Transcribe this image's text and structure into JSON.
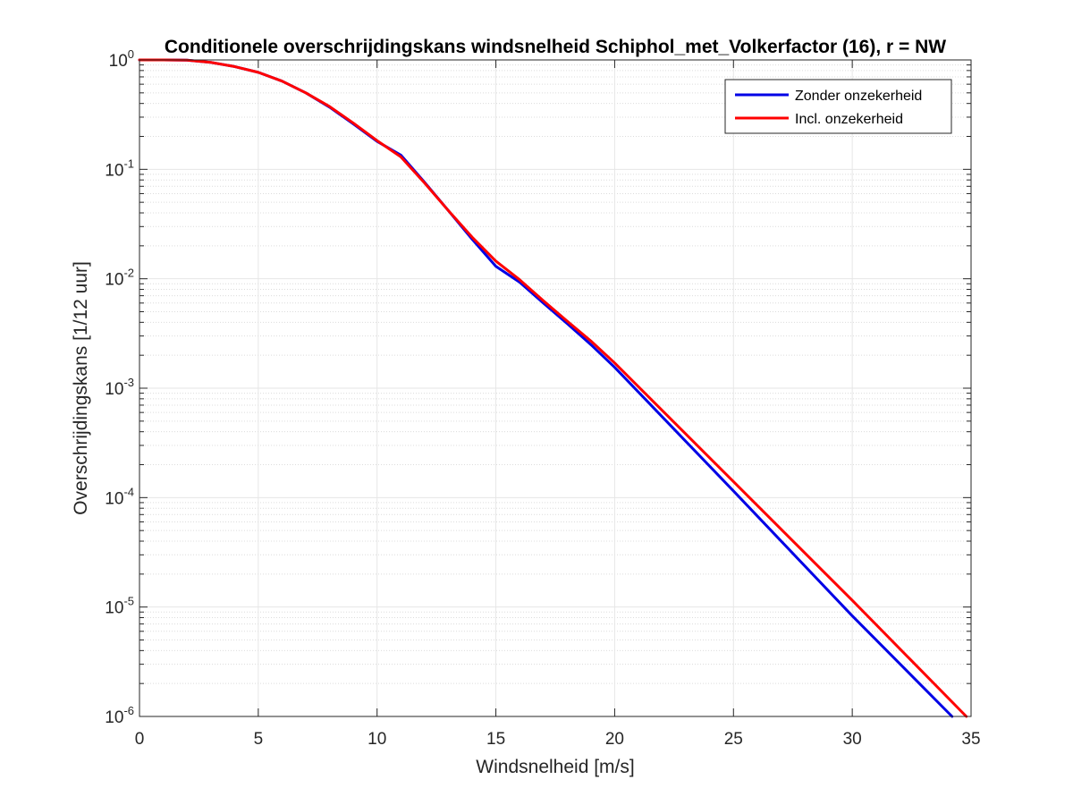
{
  "chart_data": {
    "type": "line",
    "title": "Conditionele overschrijdingskans windsnelheid Schiphol_met_Volkerfactor (16), r = NW",
    "xlabel": "Windsnelheid [m/s]",
    "ylabel": "Overschrijdingskans [1/12 uur]",
    "xlim": [
      0,
      35
    ],
    "ylim": [
      1e-06,
      1
    ],
    "yscale": "log",
    "grid": true,
    "minor_grid": true,
    "legend_position": "top-right",
    "xticks": [
      0,
      5,
      10,
      15,
      20,
      25,
      30,
      35
    ],
    "xtick_labels": [
      "0",
      "5",
      "10",
      "15",
      "20",
      "25",
      "30",
      "35"
    ],
    "yticks": [
      {
        "value": 1.0,
        "base": "10",
        "exp": "0"
      },
      {
        "value": 0.1,
        "base": "10",
        "exp": "-1"
      },
      {
        "value": 0.01,
        "base": "10",
        "exp": "-2"
      },
      {
        "value": 0.001,
        "base": "10",
        "exp": "-3"
      },
      {
        "value": 0.0001,
        "base": "10",
        "exp": "-4"
      },
      {
        "value": 1e-05,
        "base": "10",
        "exp": "-5"
      },
      {
        "value": 1e-06,
        "base": "10",
        "exp": "-6"
      }
    ],
    "series": [
      {
        "name": "Zonder onzekerheid",
        "color": "#0000e6",
        "x": [
          0,
          1,
          2,
          3,
          4,
          5,
          6,
          7,
          8,
          9,
          10,
          11,
          12,
          13,
          14,
          15,
          16,
          17,
          18,
          19,
          20,
          25,
          30,
          34.2
        ],
        "y": [
          1.0,
          1.0,
          0.995,
          0.95,
          0.87,
          0.77,
          0.64,
          0.5,
          0.37,
          0.26,
          0.18,
          0.135,
          0.076,
          0.042,
          0.023,
          0.013,
          0.0093,
          0.006,
          0.0039,
          0.0025,
          0.00155,
          0.000115,
          8.3e-06,
          1e-06
        ]
      },
      {
        "name": "Incl. onzekerheid",
        "color": "#ff0000",
        "x": [
          0,
          1,
          2,
          3,
          4,
          5,
          6,
          7,
          8,
          9,
          10,
          11,
          12,
          13,
          14,
          15,
          16,
          17,
          18,
          19,
          20,
          25,
          30,
          34.8
        ],
        "y": [
          1.0,
          1.0,
          0.995,
          0.95,
          0.87,
          0.77,
          0.64,
          0.5,
          0.375,
          0.265,
          0.183,
          0.13,
          0.075,
          0.042,
          0.024,
          0.0145,
          0.0098,
          0.0063,
          0.0041,
          0.0027,
          0.0017,
          0.00014,
          1.15e-05,
          1e-06
        ]
      }
    ]
  }
}
